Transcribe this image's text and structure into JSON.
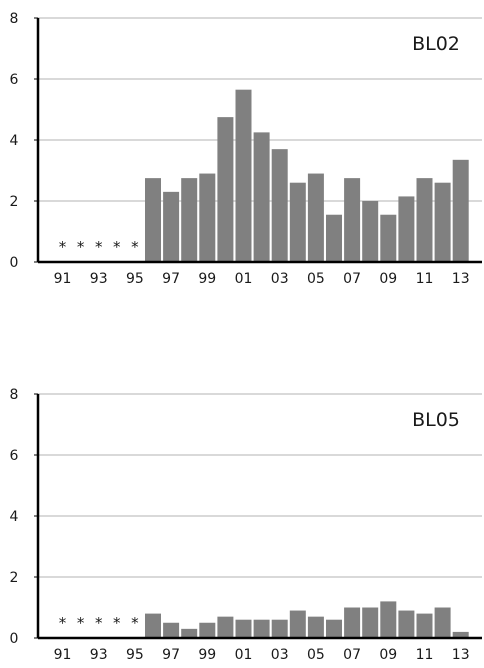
{
  "chart_data": [
    {
      "type": "bar",
      "title": "BL02",
      "xlabel": "",
      "ylabel": "",
      "ylim": [
        0,
        8
      ],
      "yticks": [
        "0",
        "2",
        "4",
        "6",
        "8"
      ],
      "grid": true,
      "categories": [
        "91",
        "92",
        "93",
        "94",
        "95",
        "96",
        "97",
        "98",
        "99",
        "00",
        "01",
        "02",
        "03",
        "04",
        "05",
        "06",
        "07",
        "08",
        "09",
        "10",
        "11",
        "12",
        "13"
      ],
      "xtick_labels": [
        "91",
        "93",
        "95",
        "97",
        "99",
        "01",
        "03",
        "05",
        "07",
        "09",
        "11",
        "13"
      ],
      "values": [
        null,
        null,
        null,
        null,
        null,
        2.75,
        2.3,
        2.75,
        2.9,
        4.75,
        5.65,
        4.25,
        3.7,
        2.6,
        2.9,
        1.55,
        2.75,
        2.0,
        1.55,
        2.15,
        2.75,
        2.6,
        3.35
      ],
      "missing_marker": "*",
      "missing_categories": [
        "91",
        "92",
        "93",
        "94",
        "95"
      ],
      "bar_color": "#808080"
    },
    {
      "type": "bar",
      "title": "BL05",
      "xlabel": "",
      "ylabel": "",
      "ylim": [
        0,
        8
      ],
      "yticks": [
        "0",
        "2",
        "4",
        "6",
        "8"
      ],
      "grid": true,
      "categories": [
        "91",
        "92",
        "93",
        "94",
        "95",
        "96",
        "97",
        "98",
        "99",
        "00",
        "01",
        "02",
        "03",
        "04",
        "05",
        "06",
        "07",
        "08",
        "09",
        "10",
        "11",
        "12",
        "13"
      ],
      "xtick_labels": [
        "91",
        "93",
        "95",
        "97",
        "99",
        "01",
        "03",
        "05",
        "07",
        "09",
        "11",
        "13"
      ],
      "values": [
        null,
        null,
        null,
        null,
        null,
        0.8,
        0.5,
        0.3,
        0.5,
        0.7,
        0.6,
        0.6,
        0.6,
        0.9,
        0.7,
        0.6,
        1.0,
        1.0,
        1.2,
        0.9,
        0.8,
        1.0,
        0.2
      ],
      "missing_marker": "*",
      "missing_categories": [
        "91",
        "92",
        "93",
        "94",
        "95"
      ],
      "bar_color": "#808080"
    }
  ]
}
